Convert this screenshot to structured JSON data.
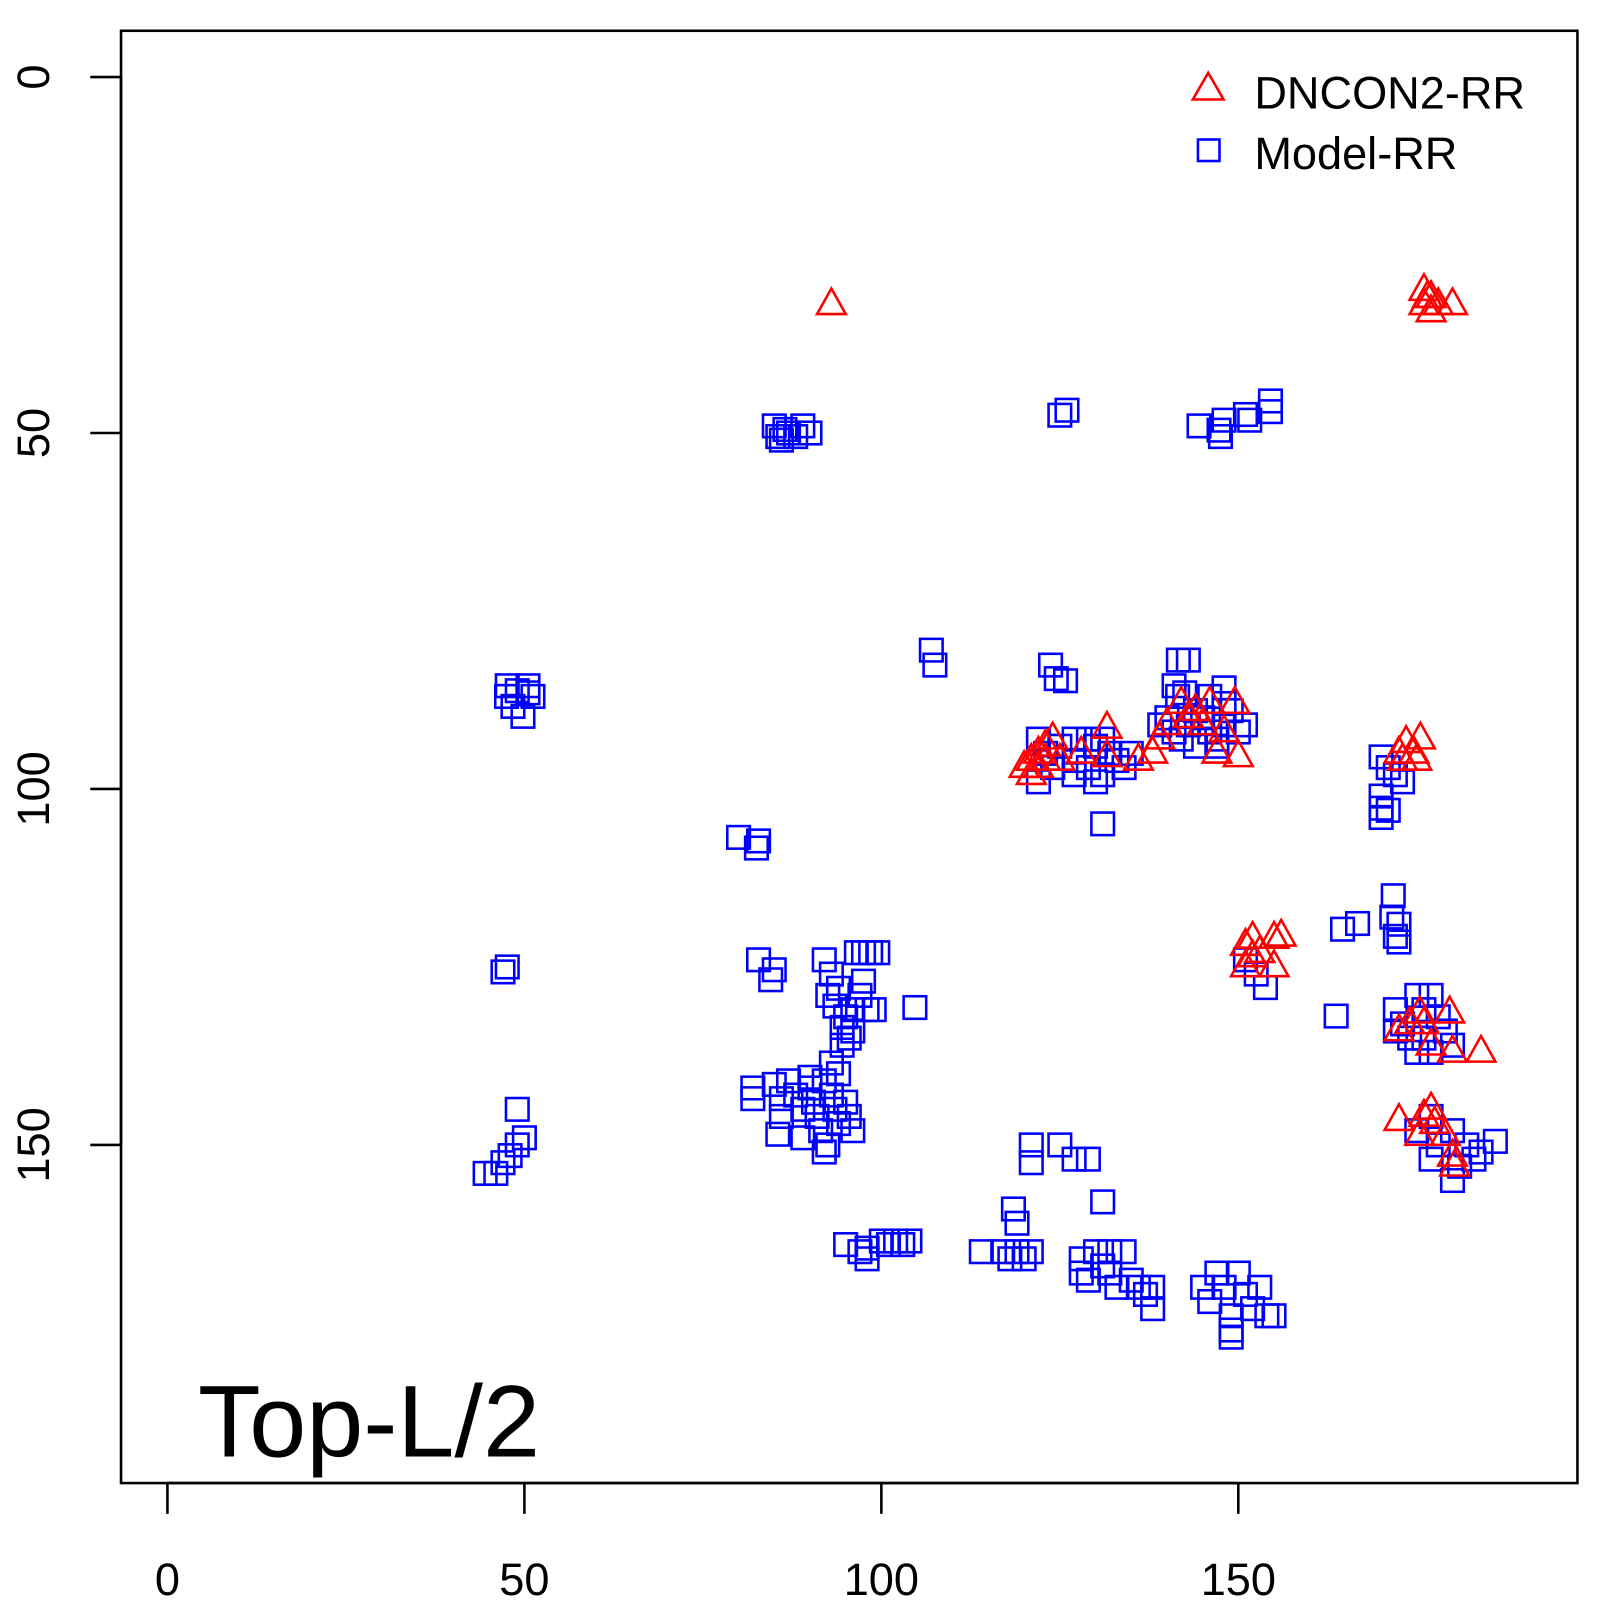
{
  "chart_data": {
    "type": "scatter",
    "title": "",
    "annotation": "Top-L/2",
    "xlabel": "",
    "ylabel": "",
    "xlim": [
      -6.5,
      197.5
    ],
    "ylim": [
      -6.5,
      197.5
    ],
    "y_inverted": true,
    "x_ticks": [
      0,
      50,
      100,
      150
    ],
    "y_ticks": [
      0,
      50,
      100,
      150
    ],
    "legend": {
      "position": "top-right",
      "entries": [
        "DNCON2-RR",
        "Model-RR"
      ]
    },
    "colors": {
      "DNCON2-RR": "#ff0000",
      "Model-RR": "#0000ff"
    },
    "series": [
      {
        "name": "Model-RR",
        "marker": "square",
        "points": [
          [
            85,
            49
          ],
          [
            85.5,
            50.5
          ],
          [
            86,
            51
          ],
          [
            86.5,
            49.5
          ],
          [
            87,
            50
          ],
          [
            88,
            50.5
          ],
          [
            90,
            50
          ],
          [
            89,
            49
          ],
          [
            125,
            47.5
          ],
          [
            126,
            46.8
          ],
          [
            144.5,
            49
          ],
          [
            147.3,
            49.6
          ],
          [
            148,
            48.2
          ],
          [
            147.5,
            50.5
          ],
          [
            151,
            47.4
          ],
          [
            151.6,
            48.2
          ],
          [
            154.5,
            45.5
          ],
          [
            154.5,
            47
          ],
          [
            47.6,
            85.5
          ],
          [
            49,
            86.2
          ],
          [
            50.5,
            85.5
          ],
          [
            51.2,
            87
          ],
          [
            48.4,
            88.4
          ],
          [
            49.8,
            89.8
          ],
          [
            47.5,
            87
          ],
          [
            50.5,
            86.5
          ],
          [
            107,
            80.5
          ],
          [
            107.5,
            82.6
          ],
          [
            123.7,
            82.6
          ],
          [
            125.8,
            84.8
          ],
          [
            124.5,
            84.5
          ],
          [
            141.6,
            81.9
          ],
          [
            143,
            81.9
          ],
          [
            141,
            85.5
          ],
          [
            148,
            85.8
          ],
          [
            141.5,
            87
          ],
          [
            142.5,
            86.5
          ],
          [
            146,
            87
          ],
          [
            122,
            93
          ],
          [
            123,
            95
          ],
          [
            124,
            97
          ],
          [
            125,
            94
          ],
          [
            127,
            93
          ],
          [
            129,
            93
          ],
          [
            130,
            94
          ],
          [
            131,
            93
          ],
          [
            127,
            96
          ],
          [
            129,
            97
          ],
          [
            130,
            99
          ],
          [
            132,
            95
          ],
          [
            133,
            96
          ],
          [
            135,
            95
          ],
          [
            134,
            97
          ],
          [
            122,
            99
          ],
          [
            127,
            98
          ],
          [
            131,
            98
          ],
          [
            131,
            104.9
          ],
          [
            140,
            90
          ],
          [
            141,
            92
          ],
          [
            142,
            93
          ],
          [
            143,
            91
          ],
          [
            144,
            89
          ],
          [
            145,
            90
          ],
          [
            146,
            92
          ],
          [
            147,
            93
          ],
          [
            148,
            91
          ],
          [
            149,
            89
          ],
          [
            150,
            92
          ],
          [
            151,
            91
          ],
          [
            144,
            94
          ],
          [
            147,
            94
          ],
          [
            139,
            91
          ],
          [
            148,
            88
          ],
          [
            170,
            95.5
          ],
          [
            171,
            97
          ],
          [
            172,
            98
          ],
          [
            170,
            101
          ],
          [
            170,
            102.7
          ],
          [
            170,
            104
          ],
          [
            171,
            103
          ],
          [
            173,
            99
          ],
          [
            80,
            106.8
          ],
          [
            82.8,
            107.3
          ],
          [
            82.5,
            108.3
          ],
          [
            171.7,
            115
          ],
          [
            172.5,
            119
          ],
          [
            172,
            120.7
          ],
          [
            171.5,
            118
          ],
          [
            172.5,
            121.5
          ],
          [
            164.6,
            119.7
          ],
          [
            166.7,
            118.9
          ],
          [
            47,
            125.7
          ],
          [
            47.6,
            125
          ],
          [
            82.8,
            124
          ],
          [
            85,
            125.4
          ],
          [
            84.5,
            126.8
          ],
          [
            92,
            124
          ],
          [
            93,
            126
          ],
          [
            94,
            128
          ],
          [
            92.5,
            129
          ],
          [
            93.5,
            130.5
          ],
          [
            95,
            132
          ],
          [
            94.5,
            133.5
          ],
          [
            95.5,
            135
          ],
          [
            96,
            131
          ],
          [
            97,
            129
          ],
          [
            97.5,
            127
          ],
          [
            96.5,
            123
          ],
          [
            97.5,
            123
          ],
          [
            98.5,
            123
          ],
          [
            99.5,
            123
          ],
          [
            98,
            131
          ],
          [
            99,
            131
          ],
          [
            96,
            134
          ],
          [
            94.5,
            136
          ],
          [
            104.7,
            130.7
          ],
          [
            153.8,
            127.9
          ],
          [
            151,
            124
          ],
          [
            152.5,
            126
          ],
          [
            163.7,
            131.9
          ],
          [
            172,
            131
          ],
          [
            173,
            133
          ],
          [
            174,
            135
          ],
          [
            175,
            129
          ],
          [
            176,
            131
          ],
          [
            177,
            129
          ],
          [
            178,
            132
          ],
          [
            172,
            134
          ],
          [
            176,
            135
          ],
          [
            179,
            134
          ],
          [
            180,
            136
          ],
          [
            175,
            137
          ],
          [
            177,
            137
          ],
          [
            82,
            142
          ],
          [
            82,
            143.5
          ],
          [
            85,
            141.5
          ],
          [
            86,
            143.5
          ],
          [
            87,
            141
          ],
          [
            88,
            143
          ],
          [
            89,
            145
          ],
          [
            90,
            142
          ],
          [
            90.5,
            144
          ],
          [
            91,
            146
          ],
          [
            91.5,
            148
          ],
          [
            92,
            141
          ],
          [
            93,
            143
          ],
          [
            93.5,
            145
          ],
          [
            94,
            147
          ],
          [
            95,
            144
          ],
          [
            95.5,
            146
          ],
          [
            96,
            148
          ],
          [
            92.5,
            150
          ],
          [
            89,
            149
          ],
          [
            86,
            146
          ],
          [
            85.5,
            148.5
          ],
          [
            93,
            138.5
          ],
          [
            94,
            140
          ],
          [
            90,
            140.5
          ],
          [
            92,
            151
          ],
          [
            49,
            145
          ],
          [
            50,
            149
          ],
          [
            49,
            150
          ],
          [
            48,
            151.5
          ],
          [
            47,
            152.5
          ],
          [
            46,
            154
          ],
          [
            44.5,
            154
          ],
          [
            175,
            148
          ],
          [
            177,
            146
          ],
          [
            178,
            150
          ],
          [
            180,
            148
          ],
          [
            182,
            150
          ],
          [
            184,
            151
          ],
          [
            186,
            149.5
          ],
          [
            177,
            152
          ],
          [
            181,
            153
          ],
          [
            183,
            152
          ],
          [
            180,
            155
          ],
          [
            121,
            150
          ],
          [
            121,
            152.5
          ],
          [
            125,
            150
          ],
          [
            127,
            152
          ],
          [
            129,
            152
          ],
          [
            131,
            158
          ],
          [
            118.5,
            159
          ],
          [
            119,
            161
          ],
          [
            95,
            164
          ],
          [
            97,
            165
          ],
          [
            98,
            166
          ],
          [
            98,
            164.5
          ],
          [
            100,
            163.5
          ],
          [
            101,
            164
          ],
          [
            102,
            163.5
          ],
          [
            103,
            164
          ],
          [
            104,
            163.5
          ],
          [
            114,
            165
          ],
          [
            117,
            165
          ],
          [
            118,
            166
          ],
          [
            119,
            165
          ],
          [
            120,
            166
          ],
          [
            121,
            165
          ],
          [
            128,
            166
          ],
          [
            128,
            168
          ],
          [
            129,
            169
          ],
          [
            130,
            165
          ],
          [
            131,
            167
          ],
          [
            132,
            165
          ],
          [
            132,
            168
          ],
          [
            133,
            170
          ],
          [
            134,
            165
          ],
          [
            135,
            169
          ],
          [
            136,
            170
          ],
          [
            137,
            171
          ],
          [
            138,
            170
          ],
          [
            138,
            173
          ],
          [
            145,
            170
          ],
          [
            146,
            172
          ],
          [
            147,
            168
          ],
          [
            148,
            170
          ],
          [
            149,
            174
          ],
          [
            149,
            176
          ],
          [
            150,
            168
          ],
          [
            151,
            171
          ],
          [
            152,
            173
          ],
          [
            153,
            170
          ],
          [
            154,
            174
          ],
          [
            155,
            174
          ],
          [
            149,
            177
          ]
        ]
      },
      {
        "name": "DNCON2-RR",
        "marker": "triangle",
        "points": [
          [
            93,
            32
          ],
          [
            176,
            30
          ],
          [
            177,
            31
          ],
          [
            176,
            32
          ],
          [
            177,
            33
          ],
          [
            180,
            32
          ],
          [
            178,
            32
          ],
          [
            176.5,
            31
          ],
          [
            120,
            97
          ],
          [
            121,
            96
          ],
          [
            122,
            95
          ],
          [
            123,
            94
          ],
          [
            124,
            93
          ],
          [
            122,
            97
          ],
          [
            121,
            98
          ],
          [
            125,
            96
          ],
          [
            123,
            96
          ],
          [
            131.6,
            91.5
          ],
          [
            131.6,
            95.5
          ],
          [
            128,
            95
          ],
          [
            136,
            96
          ],
          [
            138,
            95
          ],
          [
            139,
            93
          ],
          [
            140,
            91
          ],
          [
            142,
            88
          ],
          [
            143,
            90
          ],
          [
            146,
            88
          ],
          [
            147,
            95
          ],
          [
            149.5,
            88
          ],
          [
            150,
            95.5
          ],
          [
            145,
            91
          ],
          [
            144,
            89
          ],
          [
            148,
            92
          ],
          [
            172.5,
            95
          ],
          [
            174.6,
            95
          ],
          [
            173,
            96
          ],
          [
            175,
            96
          ],
          [
            173.5,
            93.5
          ],
          [
            175.5,
            93
          ],
          [
            151,
            122
          ],
          [
            152,
            123.6
          ],
          [
            151,
            125
          ],
          [
            153,
            123
          ],
          [
            155,
            121
          ],
          [
            156,
            120.7
          ],
          [
            155,
            125
          ],
          [
            152,
            121
          ],
          [
            172.5,
            134
          ],
          [
            175.4,
            131.5
          ],
          [
            176,
            133
          ],
          [
            177,
            136
          ],
          [
            179.6,
            131.5
          ],
          [
            180,
            137
          ],
          [
            184,
            137
          ],
          [
            174,
            133
          ],
          [
            172.5,
            146.6
          ],
          [
            177,
            145
          ],
          [
            175.4,
            148.7
          ],
          [
            177.5,
            147
          ],
          [
            180,
            151.6
          ],
          [
            180.3,
            153
          ],
          [
            179,
            148.7
          ],
          [
            176,
            146
          ]
        ]
      }
    ]
  }
}
